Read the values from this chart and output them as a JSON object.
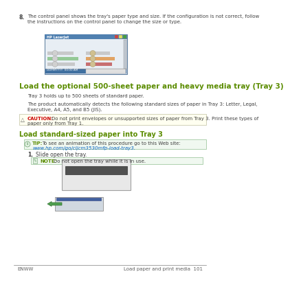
{
  "bg_color": "#ffffff",
  "page_bg": "#f0f0f0",
  "green_heading": "#5b8c00",
  "body_text_color": "#404040",
  "link_color": "#0563c1",
  "caution_color": "#cc0000",
  "note_bg": "#e8f4e8",
  "step_number": "8.",
  "step_text": "The control panel shows the tray's paper type and size. If the configuration is not correct, follow\nthe instructions on the control panel to change the size or type.",
  "heading1": "Load the optional 500-sheet paper and heavy media tray (Tray 3)",
  "para1": "Tray 3 holds up to 500 sheets of standard paper.",
  "para2": "The product automatically detects the following standard sizes of paper in Tray 3: Letter, Legal,\nExecutive, A4, A5, and B5 (JIS).",
  "caution_label": "CAUTION:",
  "caution_text": "  Do not print envelopes or unsupported sizes of paper from Tray 3. Print these types of\npaper only from Tray 1.",
  "heading2": "Load standard-sized paper into Tray 3",
  "tip_label": "TIP:",
  "tip_text": "  To see an animation of this procedure go to this Web site: ",
  "tip_link": "www.hp.com/go/cljcm3530mfp-load-\ntray3.",
  "step1_num": "1.",
  "step1_text": "Slide open the tray.",
  "note_label": "NOTE:",
  "note_text": "  Do not open the tray while it is in use.",
  "footer_left": "ENWW",
  "footer_right": "Load paper and print media  101",
  "screen_title": "HP LaserJet",
  "screen_date": "DDMMYYYY  00:00 AM"
}
